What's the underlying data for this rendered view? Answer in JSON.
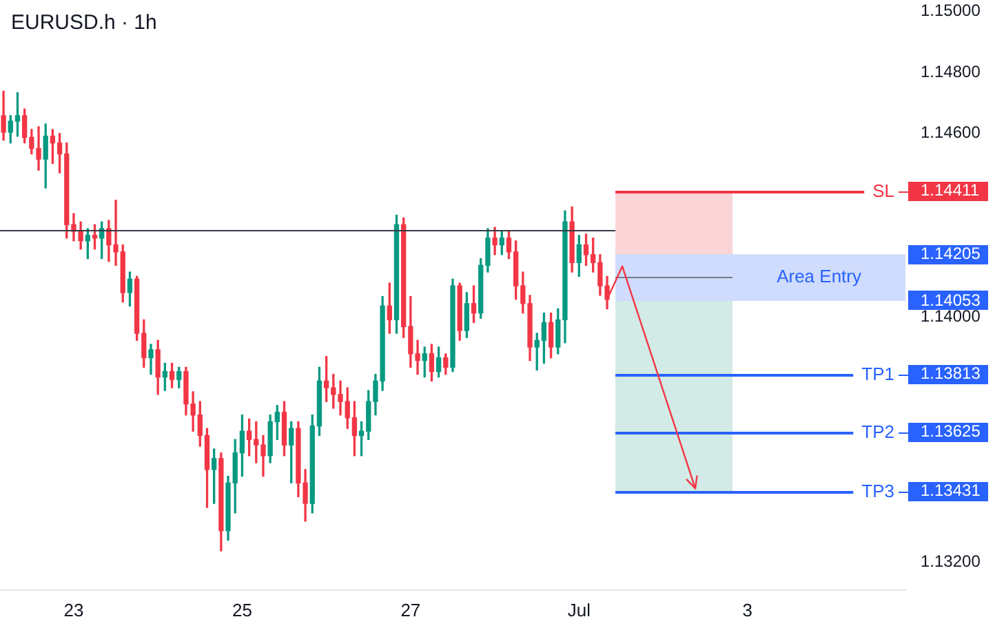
{
  "chart_data": {
    "type": "candlestick",
    "title": "EURUSD.h · 1h",
    "categories": [
      null,
      null,
      null,
      null,
      null,
      null,
      null,
      null,
      null,
      null,
      "23",
      null,
      null,
      null,
      null,
      null,
      null,
      null,
      null,
      null,
      null,
      null,
      null,
      null,
      null,
      null,
      null,
      null,
      null,
      null,
      null,
      null,
      null,
      null,
      "25",
      null,
      null,
      null,
      null,
      null,
      null,
      null,
      null,
      null,
      null,
      null,
      null,
      null,
      null,
      null,
      null,
      null,
      null,
      null,
      null,
      null,
      null,
      null,
      "27",
      null,
      null,
      null,
      null,
      null,
      null,
      null,
      null,
      null,
      null,
      null,
      null,
      null,
      null,
      null,
      null,
      null,
      null,
      null,
      null,
      null,
      null,
      null,
      "Jul",
      null,
      null,
      null,
      null,
      null,
      null,
      null,
      null,
      null,
      null,
      null,
      null,
      null,
      null,
      null,
      null,
      null,
      null,
      null,
      null,
      null,
      null,
      null,
      "3",
      null,
      null,
      null,
      null,
      null,
      null,
      null,
      null,
      null,
      null,
      null,
      null,
      null,
      null,
      null,
      null,
      null,
      null,
      null,
      null,
      null,
      null
    ],
    "ohlc": [
      [
        1.14658,
        1.14738,
        1.14578,
        1.14604
      ],
      [
        1.14604,
        1.14658,
        1.14569,
        1.1464
      ],
      [
        1.1464,
        1.14733,
        1.14591,
        1.14658
      ],
      [
        1.14658,
        1.1468,
        1.14569,
        1.14587
      ],
      [
        1.14587,
        1.14613,
        1.14533,
        1.14551
      ],
      [
        1.14551,
        1.14622,
        1.1448,
        1.14516
      ],
      [
        1.14516,
        1.14631,
        1.14422,
        1.14591
      ],
      [
        1.14591,
        1.14613,
        1.14502,
        1.14569
      ],
      [
        1.14569,
        1.146,
        1.14471,
        1.14533
      ],
      [
        1.14533,
        1.14569,
        1.14258,
        1.14302
      ],
      [
        1.14302,
        1.14338,
        1.14249,
        1.1428
      ],
      [
        1.1428,
        1.14311,
        1.14222,
        1.14249
      ],
      [
        1.14249,
        1.14289,
        1.14191,
        1.14267
      ],
      [
        1.14267,
        1.14302,
        1.14222,
        1.14258
      ],
      [
        1.14258,
        1.14311,
        1.14191,
        1.14289
      ],
      [
        1.14289,
        1.14316,
        1.14182,
        1.14236
      ],
      [
        1.14236,
        1.14382,
        1.14169,
        1.14213
      ],
      [
        1.14213,
        1.14236,
        1.14049,
        1.1408
      ],
      [
        1.1408,
        1.14147,
        1.14036,
        1.14124
      ],
      [
        1.14124,
        1.14133,
        1.13924,
        1.13947
      ],
      [
        1.13947,
        1.13991,
        1.13836,
        1.13867
      ],
      [
        1.13867,
        1.13911,
        1.13813,
        1.13893
      ],
      [
        1.13893,
        1.13924,
        1.13747,
        1.13804
      ],
      [
        1.13804,
        1.13849,
        1.1376,
        1.13822
      ],
      [
        1.13822,
        1.13849,
        1.13769,
        1.13796
      ],
      [
        1.13796,
        1.13836,
        1.13769,
        1.13822
      ],
      [
        1.13822,
        1.13836,
        1.1368,
        1.13716
      ],
      [
        1.13716,
        1.13756,
        1.13627,
        1.1368
      ],
      [
        1.1368,
        1.13724,
        1.13578,
        1.13613
      ],
      [
        1.13613,
        1.13636,
        1.13378,
        1.13502
      ],
      [
        1.13502,
        1.13569,
        1.13391,
        1.13538
      ],
      [
        1.13538,
        1.13556,
        1.13236,
        1.13302
      ],
      [
        1.13302,
        1.1348,
        1.13271,
        1.13458
      ],
      [
        1.13458,
        1.136,
        1.1336,
        1.13556
      ],
      [
        1.13556,
        1.1368,
        1.1348,
        1.13627
      ],
      [
        1.13627,
        1.13667,
        1.13547,
        1.136
      ],
      [
        1.136,
        1.13658,
        1.13524,
        1.13582
      ],
      [
        1.13582,
        1.13613,
        1.1348,
        1.13547
      ],
      [
        1.13547,
        1.1368,
        1.13524,
        1.13658
      ],
      [
        1.13658,
        1.13711,
        1.136,
        1.13689
      ],
      [
        1.13689,
        1.13724,
        1.13547,
        1.13582
      ],
      [
        1.13582,
        1.13658,
        1.13458,
        1.13636
      ],
      [
        1.13636,
        1.13658,
        1.13413,
        1.13458
      ],
      [
        1.13458,
        1.13502,
        1.13333,
        1.13391
      ],
      [
        1.13391,
        1.1368,
        1.1336,
        1.13644
      ],
      [
        1.13644,
        1.13836,
        1.13613,
        1.13791
      ],
      [
        1.13791,
        1.13871,
        1.13724,
        1.13769
      ],
      [
        1.13769,
        1.13813,
        1.13702,
        1.13747
      ],
      [
        1.13747,
        1.13791,
        1.1368,
        1.13724
      ],
      [
        1.13724,
        1.13769,
        1.13636,
        1.13671
      ],
      [
        1.13671,
        1.13724,
        1.13547,
        1.13613
      ],
      [
        1.13613,
        1.13658,
        1.13547,
        1.13627
      ],
      [
        1.13627,
        1.1376,
        1.136,
        1.13724
      ],
      [
        1.13724,
        1.13813,
        1.1368,
        1.13791
      ],
      [
        1.13791,
        1.14067,
        1.1376,
        1.14036
      ],
      [
        1.14036,
        1.14111,
        1.13947,
        1.13991
      ],
      [
        1.13991,
        1.14333,
        1.13947,
        1.14302
      ],
      [
        1.14302,
        1.14324,
        1.13933,
        1.13969
      ],
      [
        1.13969,
        1.14067,
        1.13836,
        1.1388
      ],
      [
        1.1388,
        1.13924,
        1.13813,
        1.13858
      ],
      [
        1.13858,
        1.13902,
        1.13804,
        1.1388
      ],
      [
        1.1388,
        1.13911,
        1.13791,
        1.13822
      ],
      [
        1.13822,
        1.13902,
        1.13804,
        1.13867
      ],
      [
        1.13867,
        1.1388,
        1.13813,
        1.13836
      ],
      [
        1.13836,
        1.14124,
        1.13822,
        1.14102
      ],
      [
        1.14102,
        1.14111,
        1.13924,
        1.13956
      ],
      [
        1.13956,
        1.1408,
        1.13933,
        1.14044
      ],
      [
        1.14044,
        1.14102,
        1.13982,
        1.14013
      ],
      [
        1.14013,
        1.14191,
        1.13996,
        1.14169
      ],
      [
        1.14169,
        1.14289,
        1.14147,
        1.14258
      ],
      [
        1.14258,
        1.14293,
        1.14204,
        1.14236
      ],
      [
        1.14236,
        1.1428,
        1.14204,
        1.14258
      ],
      [
        1.14258,
        1.1428,
        1.14191,
        1.14213
      ],
      [
        1.14213,
        1.14249,
        1.14058,
        1.14102
      ],
      [
        1.14102,
        1.14147,
        1.14013,
        1.14044
      ],
      [
        1.14044,
        1.14071,
        1.13858,
        1.13902
      ],
      [
        1.13902,
        1.13947,
        1.13827,
        1.13924
      ],
      [
        1.13924,
        1.14013,
        1.13849,
        1.13982
      ],
      [
        1.13982,
        1.14013,
        1.13867,
        1.13902
      ],
      [
        1.13902,
        1.14027,
        1.1388,
        1.13991
      ],
      [
        1.13991,
        1.14347,
        1.13916,
        1.14311
      ],
      [
        1.14311,
        1.1436,
        1.14147,
        1.14178
      ],
      [
        1.14178,
        1.14267,
        1.14133,
        1.14236
      ],
      [
        1.14236,
        1.14271,
        1.14169,
        1.14204
      ],
      [
        1.14204,
        1.14258,
        1.14147,
        1.14178
      ],
      [
        1.14178,
        1.14204,
        1.14071,
        1.14102
      ],
      [
        1.14102,
        1.14133,
        1.14027,
        1.14058
      ],
      null,
      null,
      null,
      null,
      null,
      null,
      null,
      null,
      null,
      null,
      null,
      null,
      null,
      null,
      null,
      null,
      null,
      null,
      null,
      null,
      null,
      null,
      null,
      null,
      null,
      null,
      null,
      null,
      null,
      null,
      null,
      null,
      null,
      null,
      null,
      null,
      null,
      null,
      null,
      null,
      null,
      null
    ],
    "ylim": [
      1.1311,
      1.15
    ],
    "yticks": [
      {
        "value": 1.132,
        "label": "1.13200"
      },
      1.13431,
      1.13625,
      1.13813,
      {
        "value": 1.14,
        "label": "1.14000"
      },
      1.14053,
      1.14205,
      1.14411,
      {
        "value": 1.146,
        "label": "1.14600"
      },
      {
        "value": 1.148,
        "label": "1.14800"
      },
      {
        "value": 1.15,
        "label": "1.15000"
      }
    ],
    "ref_lines": [
      {
        "axis": "y",
        "value": 1.14284,
        "color": "#363a45"
      },
      {
        "axis": "y",
        "value": 1.1413,
        "color": "#787b86"
      },
      {
        "axis": "y",
        "value": 1.14411,
        "label": "SL",
        "color": "#f23645"
      },
      {
        "axis": "y",
        "value": 1.13813,
        "label": "TP1",
        "color": "#2962ff"
      },
      {
        "axis": "y",
        "value": 1.13625,
        "label": "TP2",
        "color": "#2962ff"
      },
      {
        "axis": "y",
        "value": 1.13431,
        "label": "TP3",
        "color": "#2962ff"
      }
    ],
    "bands": [
      {
        "axis": "y",
        "from": 1.1413,
        "to": 1.14411,
        "color": "#fad4d7"
      },
      {
        "axis": "y",
        "from": 1.13431,
        "to": 1.1413,
        "color": "#d3ebe6"
      },
      {
        "axis": "y",
        "from": 1.14053,
        "to": 1.14205,
        "label": "Area Entry",
        "color": "#cfdcfd"
      }
    ]
  }
}
